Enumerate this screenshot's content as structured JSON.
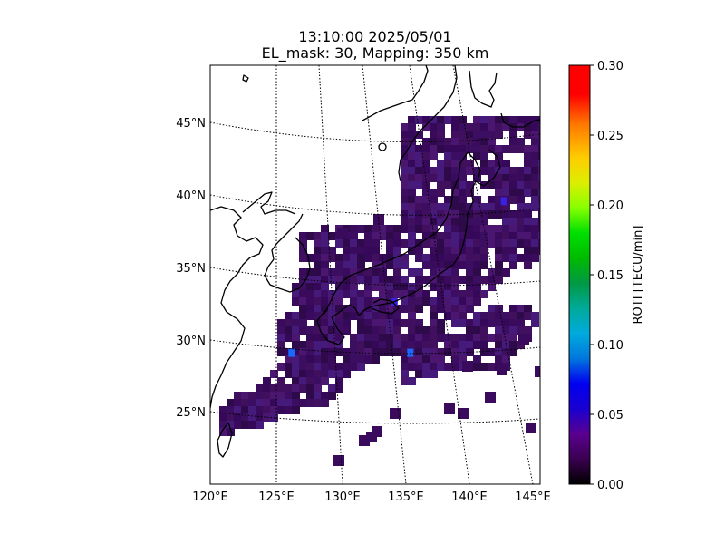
{
  "title_line1": "13:10:00 2025/05/01",
  "title_line2": "EL_mask: 30, Mapping: 350 km",
  "map": {
    "lon_ticks": [
      "120°E",
      "125°E",
      "130°E",
      "135°E",
      "140°E",
      "145°E"
    ],
    "lat_ticks": [
      "45°N",
      "40°N",
      "35°N",
      "30°N",
      "25°N"
    ],
    "extent": {
      "lon_min": 120,
      "lon_max": 145,
      "lat_min": 20,
      "lat_max": 49
    },
    "pixel_color_low": "#3a0a5c",
    "pixel_color_high": "#4a20c0",
    "hotspots": [
      {
        "lon": 126.2,
        "lat": 29.0,
        "value": 0.08
      },
      {
        "lon": 135.2,
        "lat": 29.0,
        "value": 0.09
      },
      {
        "lon": 134.0,
        "lat": 32.5,
        "value": 0.07
      },
      {
        "lon": 142.3,
        "lat": 39.5,
        "value": 0.07
      }
    ]
  },
  "colorbar": {
    "label": "ROTI [TECU/min]",
    "ticks": [
      "0.00",
      "0.05",
      "0.10",
      "0.15",
      "0.20",
      "0.25",
      "0.30"
    ],
    "min": 0.0,
    "max": 0.3,
    "colormap": "nipy_spectral"
  }
}
